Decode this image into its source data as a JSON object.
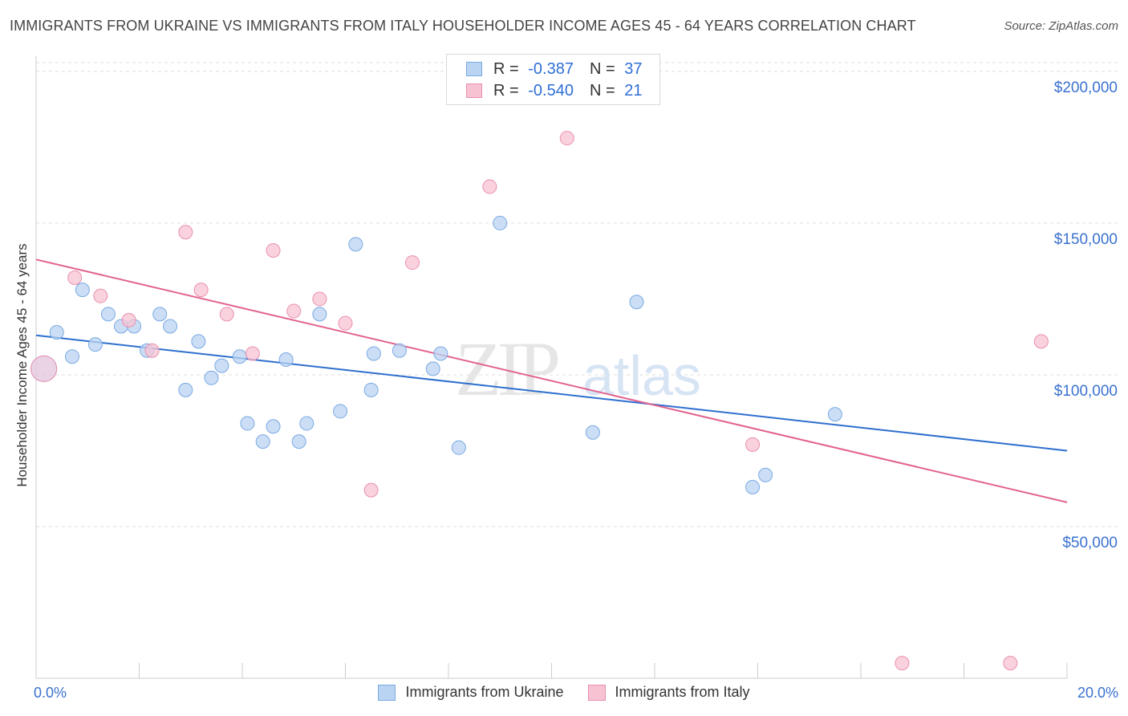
{
  "title": "IMMIGRANTS FROM UKRAINE VS IMMIGRANTS FROM ITALY HOUSEHOLDER INCOME AGES 45 - 64 YEARS CORRELATION CHART",
  "source": "Source: ZipAtlas.com",
  "watermark": {
    "zip": "ZIP",
    "atlas": "atlas"
  },
  "legend": {
    "ukraine": {
      "r_label": "R = ",
      "r_value": "-0.387",
      "n_label": "N = ",
      "n_value": "37"
    },
    "italy": {
      "r_label": "R = ",
      "r_value": "-0.540",
      "n_label": "N = ",
      "n_value": "21"
    }
  },
  "colors": {
    "ukraine_fill": "#b9d3f2",
    "ukraine_stroke": "#7aaae3",
    "ukraine_line": "#2e6fce",
    "italy_fill": "#f7c3d3",
    "italy_stroke": "#ea8fae",
    "italy_line": "#e2628f",
    "axis_label": "#3a72cf",
    "grid": "#dddddd"
  },
  "chart_data": {
    "type": "scatter",
    "title": "IMMIGRANTS FROM UKRAINE VS IMMIGRANTS FROM ITALY HOUSEHOLDER INCOME AGES 45 - 64 YEARS CORRELATION CHART",
    "xlabel": "",
    "ylabel": "Householder Income Ages 45 - 64 years",
    "xlim": [
      0,
      20
    ],
    "ylim": [
      0,
      205000
    ],
    "x_tick_labels": [
      "0.0%",
      "20.0%"
    ],
    "y_ticks": [
      50000,
      100000,
      150000,
      200000
    ],
    "y_tick_labels": [
      "$50,000",
      "$100,000",
      "$150,000",
      "$200,000"
    ],
    "grid": true,
    "legend_position": "bottom-center",
    "series": [
      {
        "name": "Immigrants from Ukraine",
        "points": [
          [
            0.15,
            102000
          ],
          [
            0.4,
            114000
          ],
          [
            0.7,
            106000
          ],
          [
            0.9,
            128000
          ],
          [
            1.15,
            110000
          ],
          [
            1.4,
            120000
          ],
          [
            1.65,
            116000
          ],
          [
            1.9,
            116000
          ],
          [
            2.15,
            108000
          ],
          [
            2.4,
            120000
          ],
          [
            2.6,
            116000
          ],
          [
            2.9,
            95000
          ],
          [
            3.15,
            111000
          ],
          [
            3.4,
            99000
          ],
          [
            3.6,
            103000
          ],
          [
            3.95,
            106000
          ],
          [
            4.1,
            84000
          ],
          [
            4.4,
            78000
          ],
          [
            4.6,
            83000
          ],
          [
            4.85,
            105000
          ],
          [
            5.1,
            78000
          ],
          [
            5.25,
            84000
          ],
          [
            5.5,
            120000
          ],
          [
            5.9,
            88000
          ],
          [
            6.2,
            143000
          ],
          [
            6.5,
            95000
          ],
          [
            6.55,
            107000
          ],
          [
            7.05,
            108000
          ],
          [
            7.7,
            102000
          ],
          [
            7.85,
            107000
          ],
          [
            8.2,
            76000
          ],
          [
            9.0,
            150000
          ],
          [
            10.8,
            81000
          ],
          [
            11.65,
            124000
          ],
          [
            13.9,
            63000
          ],
          [
            14.15,
            67000
          ],
          [
            15.5,
            87000
          ]
        ],
        "trend": {
          "x": [
            0,
            20
          ],
          "y": [
            113000,
            75000
          ]
        }
      },
      {
        "name": "Immigrants from Italy",
        "points": [
          [
            0.15,
            102000
          ],
          [
            0.75,
            132000
          ],
          [
            1.25,
            126000
          ],
          [
            1.8,
            118000
          ],
          [
            2.25,
            108000
          ],
          [
            2.9,
            147000
          ],
          [
            3.2,
            128000
          ],
          [
            3.7,
            120000
          ],
          [
            4.2,
            107000
          ],
          [
            4.6,
            141000
          ],
          [
            5.0,
            121000
          ],
          [
            5.5,
            125000
          ],
          [
            6.0,
            117000
          ],
          [
            6.5,
            62000
          ],
          [
            7.3,
            137000
          ],
          [
            8.8,
            162000
          ],
          [
            10.3,
            178000
          ],
          [
            13.9,
            77000
          ],
          [
            16.8,
            5000
          ],
          [
            18.9,
            5000
          ],
          [
            19.5,
            111000
          ]
        ],
        "trend": {
          "x": [
            0,
            20
          ],
          "y": [
            138000,
            58000
          ]
        }
      }
    ]
  },
  "axes": {
    "ylabel": "Householder Income Ages 45 - 64 years",
    "x_left_label": "0.0%",
    "x_right_label": "20.0%"
  }
}
